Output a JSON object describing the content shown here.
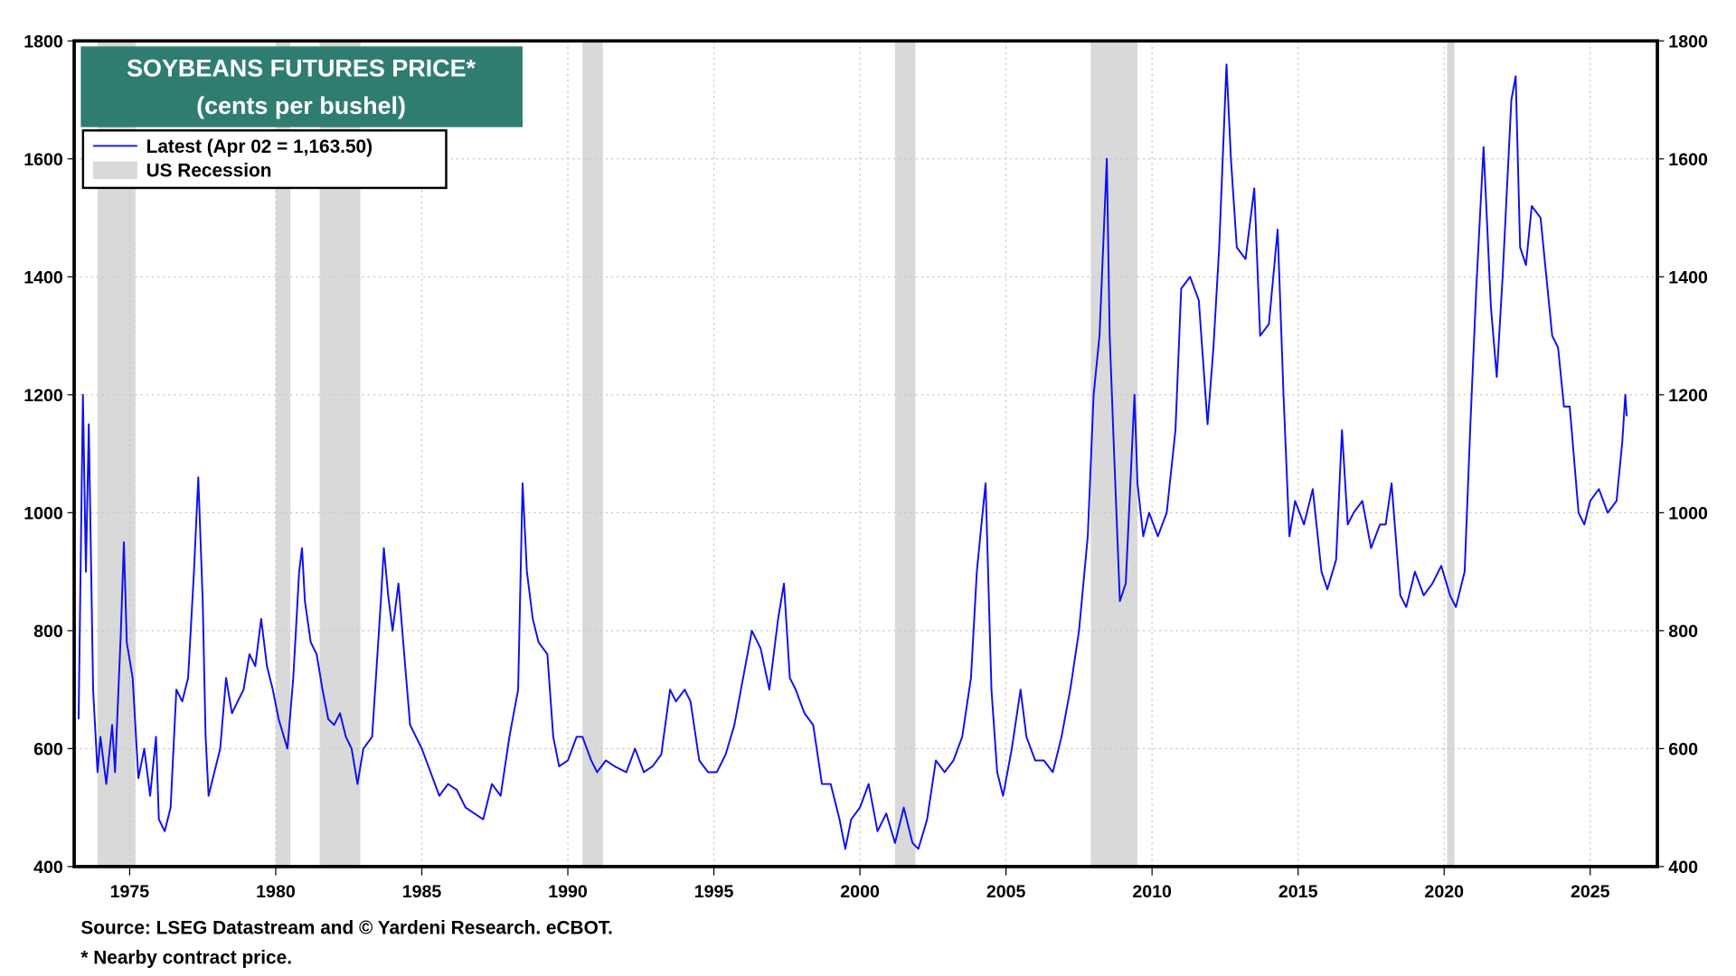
{
  "chart_data": {
    "type": "line",
    "title": "SOYBEANS FUTURES PRICE*",
    "subtitle": "(cents per bushel)",
    "xlabel": "",
    "ylabel": "",
    "xlim": [
      1973.1,
      2027.3
    ],
    "ylim": [
      400,
      1800
    ],
    "x_ticks": [
      "1975",
      "1980",
      "1985",
      "1990",
      "1995",
      "2000",
      "2005",
      "2010",
      "2015",
      "2020",
      "2025"
    ],
    "y_ticks": [
      "400",
      "600",
      "800",
      "1000",
      "1200",
      "1400",
      "1600",
      "1800"
    ],
    "grid": true,
    "legend_position": "top-left",
    "legend": [
      "Latest (Apr 02 = 1,163.50)",
      "US Recession"
    ],
    "colors": {
      "line": "#1010f0",
      "recession": "#d9d9d9",
      "title_bg": "#2f7d70"
    },
    "recessions": [
      [
        1973.9,
        1975.2
      ],
      [
        1980.0,
        1980.5
      ],
      [
        1981.5,
        1982.9
      ],
      [
        1990.5,
        1991.2
      ],
      [
        2001.2,
        2001.9
      ],
      [
        2007.9,
        2009.5
      ],
      [
        2020.1,
        2020.35
      ]
    ],
    "series": [
      {
        "x": [
          1973.25,
          1973.4,
          1973.5,
          1973.6,
          1973.75,
          1973.9,
          1974.0,
          1974.2,
          1974.4,
          1974.5,
          1974.7,
          1974.8,
          1974.9,
          1975.1,
          1975.3,
          1975.5,
          1975.7,
          1975.9,
          1976.0,
          1976.2,
          1976.4,
          1976.6,
          1976.8,
          1977.0,
          1977.2,
          1977.35,
          1977.5,
          1977.6,
          1977.7,
          1977.9,
          1978.1,
          1978.3,
          1978.5,
          1978.7,
          1978.9,
          1979.1,
          1979.3,
          1979.5,
          1979.7,
          1979.9,
          1980.1,
          1980.4,
          1980.6,
          1980.8,
          1980.9,
          1981.0,
          1981.2,
          1981.4,
          1981.6,
          1981.8,
          1982.0,
          1982.2,
          1982.4,
          1982.6,
          1982.8,
          1983.0,
          1983.3,
          1983.6,
          1983.7,
          1983.85,
          1984.0,
          1984.2,
          1984.4,
          1984.6,
          1984.8,
          1985.0,
          1985.3,
          1985.6,
          1985.9,
          1986.2,
          1986.5,
          1986.8,
          1987.1,
          1987.4,
          1987.7,
          1988.0,
          1988.3,
          1988.45,
          1988.6,
          1988.8,
          1989.0,
          1989.3,
          1989.5,
          1989.7,
          1990.0,
          1990.3,
          1990.5,
          1990.8,
          1991.0,
          1991.3,
          1991.6,
          1992.0,
          1992.3,
          1992.6,
          1992.9,
          1993.2,
          1993.5,
          1993.7,
          1994.0,
          1994.2,
          1994.5,
          1994.8,
          1995.1,
          1995.4,
          1995.7,
          1996.0,
          1996.3,
          1996.6,
          1996.9,
          1997.2,
          1997.4,
          1997.6,
          1997.8,
          1998.1,
          1998.4,
          1998.7,
          1999.0,
          1999.3,
          1999.5,
          1999.7,
          2000.0,
          2000.3,
          2000.6,
          2000.9,
          2001.2,
          2001.5,
          2001.8,
          2002.0,
          2002.3,
          2002.6,
          2002.9,
          2003.2,
          2003.5,
          2003.8,
          2004.0,
          2004.2,
          2004.3,
          2004.5,
          2004.7,
          2004.9,
          2005.2,
          2005.5,
          2005.7,
          2006.0,
          2006.3,
          2006.6,
          2006.9,
          2007.2,
          2007.5,
          2007.8,
          2008.0,
          2008.2,
          2008.45,
          2008.55,
          2008.7,
          2008.9,
          2009.1,
          2009.4,
          2009.5,
          2009.7,
          2009.9,
          2010.2,
          2010.5,
          2010.8,
          2011.0,
          2011.3,
          2011.6,
          2011.9,
          2012.1,
          2012.3,
          2012.55,
          2012.7,
          2012.9,
          2013.2,
          2013.5,
          2013.7,
          2014.0,
          2014.3,
          2014.5,
          2014.7,
          2014.9,
          2015.2,
          2015.5,
          2015.8,
          2016.0,
          2016.3,
          2016.5,
          2016.7,
          2016.9,
          2017.2,
          2017.5,
          2017.8,
          2018.0,
          2018.2,
          2018.5,
          2018.7,
          2019.0,
          2019.3,
          2019.6,
          2019.9,
          2020.2,
          2020.4,
          2020.7,
          2020.9,
          2021.1,
          2021.35,
          2021.6,
          2021.8,
          2022.0,
          2022.3,
          2022.45,
          2022.6,
          2022.8,
          2023.0,
          2023.3,
          2023.5,
          2023.7,
          2023.9,
          2024.1,
          2024.3,
          2024.6,
          2024.8,
          2025.0,
          2025.3,
          2025.6,
          2025.9,
          2026.1,
          2026.2,
          2026.25
        ],
        "y": [
          650,
          1200,
          900,
          1150,
          700,
          560,
          620,
          540,
          640,
          560,
          800,
          950,
          780,
          720,
          550,
          600,
          520,
          620,
          480,
          460,
          500,
          700,
          680,
          720,
          900,
          1060,
          850,
          620,
          520,
          560,
          600,
          720,
          660,
          680,
          700,
          760,
          740,
          820,
          740,
          700,
          650,
          600,
          720,
          900,
          940,
          850,
          780,
          760,
          700,
          650,
          640,
          660,
          620,
          600,
          540,
          600,
          620,
          850,
          940,
          860,
          800,
          880,
          760,
          640,
          620,
          600,
          560,
          520,
          540,
          530,
          500,
          490,
          480,
          540,
          520,
          620,
          700,
          1050,
          900,
          820,
          780,
          760,
          620,
          570,
          580,
          620,
          620,
          580,
          560,
          580,
          570,
          560,
          600,
          560,
          570,
          590,
          700,
          680,
          700,
          680,
          580,
          560,
          560,
          590,
          640,
          720,
          800,
          770,
          700,
          820,
          880,
          720,
          700,
          660,
          640,
          540,
          540,
          480,
          430,
          480,
          500,
          540,
          460,
          490,
          440,
          500,
          440,
          430,
          480,
          580,
          560,
          580,
          620,
          720,
          900,
          1000,
          1050,
          700,
          560,
          520,
          600,
          700,
          620,
          580,
          580,
          560,
          620,
          700,
          800,
          960,
          1200,
          1300,
          1600,
          1300,
          1100,
          850,
          880,
          1200,
          1050,
          960,
          1000,
          960,
          1000,
          1140,
          1380,
          1400,
          1360,
          1150,
          1280,
          1450,
          1760,
          1600,
          1450,
          1430,
          1550,
          1300,
          1320,
          1480,
          1200,
          960,
          1020,
          980,
          1040,
          900,
          870,
          920,
          1140,
          980,
          1000,
          1020,
          940,
          980,
          980,
          1050,
          860,
          840,
          900,
          860,
          880,
          910,
          860,
          840,
          900,
          1150,
          1380,
          1620,
          1350,
          1230,
          1400,
          1700,
          1740,
          1450,
          1420,
          1520,
          1500,
          1400,
          1300,
          1280,
          1180,
          1180,
          1000,
          980,
          1020,
          1040,
          1000,
          1020,
          1120,
          1200,
          1163.5
        ]
      }
    ]
  },
  "footer": {
    "source": "Source: LSEG Datastream and © Yardeni Research. eCBOT.",
    "note": "* Nearby contract price."
  }
}
